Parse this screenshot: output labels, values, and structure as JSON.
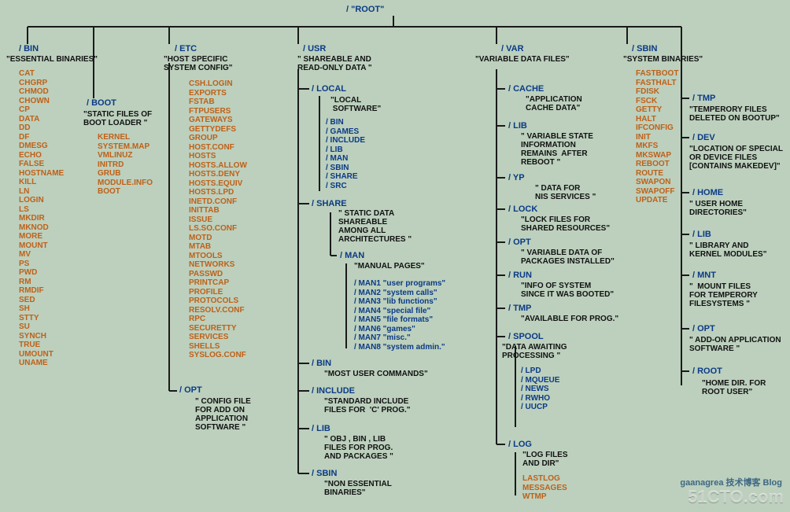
{
  "colors": {
    "background": "#bcd0bd",
    "line": "#1a1a1a",
    "title": "#0b3a86",
    "desc": "#111111",
    "item_orange": "#c06018",
    "item_blue": "#0b3a86"
  },
  "fonts": {
    "title_size": 11,
    "desc_size": 10,
    "item_size": 10
  },
  "root": {
    "title": "/   \"ROOT\""
  },
  "bin": {
    "title": "/ BIN",
    "desc": "\"ESSENTIAL BINARIES\"",
    "items": [
      "CAT",
      "CHGRP",
      "CHMOD",
      "CHOWN",
      "CP",
      "DATA",
      "DD",
      "DF",
      "DMESG",
      "ECHO",
      "FALSE",
      "HOSTNAME",
      "KILL",
      "LN",
      "LOGIN",
      "LS",
      "MKDIR",
      "MKNOD",
      "MORE",
      "MOUNT",
      "MV",
      "PS",
      "PWD",
      "RM",
      "RMDIF",
      "SED",
      "SH",
      "STTY",
      "SU",
      "SYNCH",
      "TRUE",
      "UMOUNT",
      "UNAME"
    ]
  },
  "boot": {
    "title": "/ BOOT",
    "desc": "\"STATIC FILES OF\nBOOT LOADER \"",
    "items": [
      "KERNEL",
      "SYSTEM.MAP",
      "VMLINUZ",
      "INITRD",
      "GRUB",
      "MODULE.INFO",
      "BOOT"
    ]
  },
  "etc": {
    "title": "/ ETC",
    "desc": "\"HOST SPECIFIC\nSYSTEM CONFIG\"",
    "items": [
      "CSH.LOGIN",
      "EXPORTS",
      "FSTAB",
      "FTPUSERS",
      "GATEWAYS",
      "GETTYDEFS",
      "GROUP",
      "HOST.CONF",
      "HOSTS",
      "HOSTS.ALLOW",
      "HOSTS.DENY",
      "HOSTS.EQUIV",
      "HOSTS.LPD",
      "INETD.CONF",
      "INITTAB",
      "ISSUE",
      "LS.SO.CONF",
      "MOTD",
      "MTAB",
      "MTOOLS",
      "NETWORKS",
      "PASSWD",
      "PRINTCAP",
      "PROFILE",
      "PROTOCOLS",
      "RESOLV.CONF",
      "RPC",
      "SECURETTY",
      "SERVICES",
      "SHELLS",
      "SYSLOG.CONF"
    ]
  },
  "opt_left": {
    "title": "/ OPT",
    "desc": "\" CONFIG FILE\nFOR ADD ON\nAPPLICATION\nSOFTWARE \""
  },
  "usr": {
    "title": "/ USR",
    "desc": "\" SHAREABLE AND\nREAD-ONLY DATA \"",
    "local": {
      "title": "/ LOCAL",
      "desc": "\"LOCAL\n SOFTWARE\"",
      "items": [
        "/ BIN",
        "/ GAMES",
        "/ INCLUDE",
        "/ LIB",
        "/ MAN",
        "/ SBIN",
        "/ SHARE",
        "/ SRC"
      ]
    },
    "share": {
      "title": "/ SHARE",
      "desc": "\" STATIC DATA\nSHAREABLE\nAMONG ALL\nARCHITECTURES \"",
      "man": {
        "title": "/ MAN",
        "desc": "\"MANUAL PAGES\"",
        "items": [
          "/ MAN1  \"user programs\"",
          "/ MAN2  \"system calls\"",
          "/ MAN3  \"lib functions\"",
          "/ MAN4  \"special file\"",
          "/ MAN5  \"file formats\"",
          "/ MAN6  \"games\"",
          "/ MAN7  \"misc.\"",
          "/ MAN8  \"system admin.\""
        ]
      }
    },
    "bin": {
      "title": "/ BIN",
      "desc": "\"MOST USER COMMANDS\""
    },
    "include": {
      "title": "/ INCLUDE",
      "desc": "\"STANDARD INCLUDE\nFILES FOR  'C' PROG.\""
    },
    "lib": {
      "title": "/ LIB",
      "desc": "\" OBJ , BIN , LIB\nFILES FOR PROG.\nAND PACKAGES \""
    },
    "sbin": {
      "title": "/ SBIN",
      "desc": "\"NON ESSENTIAL\nBINARIES\""
    }
  },
  "var": {
    "title": "/ VAR",
    "desc": "\"VARIABLE DATA FILES\"",
    "cache": {
      "title": "/ CACHE",
      "desc": "\"APPLICATION\nCACHE DATA\""
    },
    "lib": {
      "title": "/ LIB",
      "desc": "\" VARIABLE STATE\nINFORMATION\nREMAINS  AFTER\nREBOOT \""
    },
    "yp": {
      "title": "/ YP",
      "desc": "\" DATA FOR\nNIS SERVICES \""
    },
    "lock": {
      "title": "/ LOCK",
      "desc": "\"LOCK FILES FOR\nSHARED RESOURCES\""
    },
    "opt": {
      "title": "/ OPT",
      "desc": "\" VARIABLE DATA OF\nPACKAGES INSTALLED\""
    },
    "run": {
      "title": "/ RUN",
      "desc": "\"INFO OF SYSTEM\nSINCE IT WAS BOOTED\""
    },
    "tmp": {
      "title": "/ TMP",
      "desc": "\"AVAILABLE FOR PROG.\""
    },
    "spool": {
      "title": "/ SPOOL",
      "desc": "\"DATA AWAITING\nPROCESSING \"",
      "items": [
        "/ LPD",
        "/ MQUEUE",
        "/ NEWS",
        "/ RWHO",
        "/ UUCP"
      ]
    },
    "log": {
      "title": "/ LOG",
      "desc": "\"LOG FILES\nAND DIR\"",
      "items": [
        "LASTLOG",
        "MESSAGES",
        "WTMP"
      ]
    }
  },
  "sbin": {
    "title": "/ SBIN",
    "desc": "\"SYSTEM BINARIES\"",
    "items": [
      "FASTBOOT",
      "FASTHALT",
      "FDISK",
      "FSCK",
      "GETTY",
      "HALT",
      "IFCONFIG",
      "INIT",
      "MKFS",
      "MKSWAP",
      "REBOOT",
      "ROUTE",
      "SWAPON",
      "SWAPOFF",
      "UPDATE"
    ]
  },
  "tmp": {
    "title": "/ TMP",
    "desc": "\"TEMPERORY FILES\nDELETED ON BOOTUP\""
  },
  "dev": {
    "title": "/ DEV",
    "desc": "\"LOCATION OF SPECIAL\nOR DEVICE FILES\n[CONTAINS MAKEDEV]\""
  },
  "home": {
    "title": "/ HOME",
    "desc": "\" USER HOME\nDIRECTORIES\""
  },
  "lib_r": {
    "title": "/ LIB",
    "desc": "\" LIBRARY AND\nKERNEL MODULES\""
  },
  "mnt": {
    "title": "/ MNT",
    "desc": "\"  MOUNT FILES\nFOR TEMPERORY\nFILESYSTEMS \""
  },
  "opt_r": {
    "title": "/ OPT",
    "desc": "\" ADD-ON APPLICATION\nSOFTWARE \""
  },
  "root_r": {
    "title": "/ ROOT",
    "desc": "\"HOME DIR. FOR\nROOT USER\""
  },
  "watermark": {
    "main": "51CTO.com",
    "sub": "gaanagrea 技术博客 Blog"
  }
}
